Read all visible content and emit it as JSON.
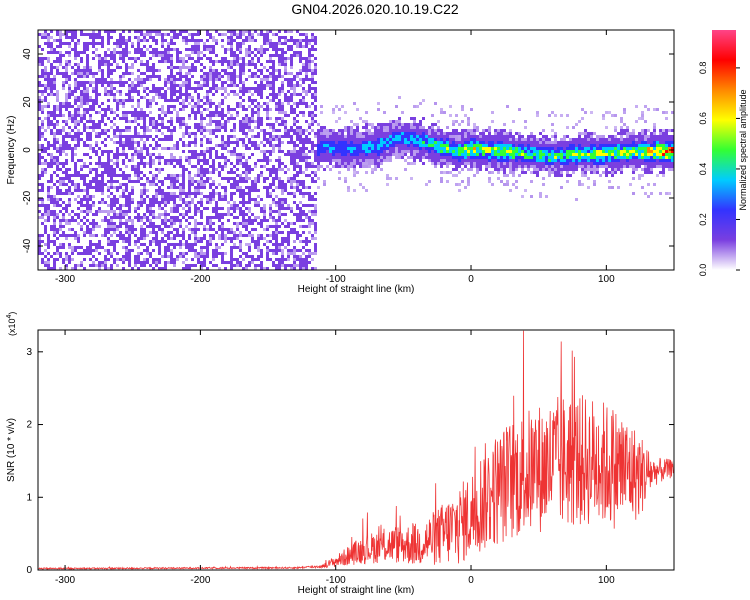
{
  "title": "GN04.2026.020.10.19.C22",
  "chart_data": [
    {
      "type": "heatmap",
      "name": "spectrogram",
      "title": "GN04.2026.020.10.19.C22",
      "xlabel": "Height of straight line (km)",
      "ylabel": "Frequency (Hz)",
      "xlim": [
        -320,
        150
      ],
      "ylim": [
        -50,
        50
      ],
      "xticks": [
        -300,
        -200,
        -100,
        0,
        100
      ],
      "yticks": [
        -40,
        -20,
        0,
        20,
        40
      ],
      "colorbar": {
        "label": "Normalized spectral amplitude",
        "range": [
          0,
          0.95
        ],
        "ticks": [
          0.0,
          0.2,
          0.4,
          0.6,
          0.8
        ],
        "tick_labels": [
          "0.0",
          "0.2",
          "0.4",
          "0.6",
          "0.8"
        ],
        "colors": [
          "#ffffff",
          "#7a3fe0",
          "#3333ff",
          "#00ccff",
          "#33ff33",
          "#ffff00",
          "#ff8800",
          "#ff0000",
          "#ff4488"
        ]
      },
      "noise_region": {
        "x": [
          -320,
          -115
        ],
        "level": 0.1
      },
      "signal_track": {
        "x": [
          -115,
          -90,
          -70,
          -55,
          -40,
          -25,
          -10,
          0,
          20,
          40,
          60,
          80,
          100,
          120,
          150
        ],
        "center_freq_hz": [
          2,
          1,
          2,
          6,
          5,
          2,
          0,
          1,
          0,
          -1,
          -2,
          -1,
          -1,
          0,
          0
        ],
        "peak_amplitude": [
          0.35,
          0.35,
          0.4,
          0.35,
          0.4,
          0.5,
          0.55,
          0.65,
          0.55,
          0.5,
          0.5,
          0.55,
          0.55,
          0.6,
          0.85
        ]
      }
    },
    {
      "type": "line",
      "name": "snr",
      "xlabel": "Height of straight line (km)",
      "ylabel": "SNR (10 * v/v)",
      "y_scale_label": "(x10",
      "y_scale_exp": "4",
      "xlim": [
        -320,
        150
      ],
      "ylim": [
        0,
        3.3
      ],
      "xticks": [
        -300,
        -200,
        -100,
        0,
        100
      ],
      "yticks": [
        0,
        1,
        2,
        3
      ],
      "color": "#ee3333",
      "envelope": {
        "x": [
          -320,
          -130,
          -110,
          -100,
          -80,
          -60,
          -40,
          -25,
          -10,
          0,
          10,
          30,
          50,
          70,
          90,
          110,
          125,
          135,
          150
        ],
        "mean": [
          0.02,
          0.03,
          0.05,
          0.12,
          0.28,
          0.35,
          0.35,
          0.45,
          0.6,
          0.75,
          1.0,
          1.25,
          1.4,
          1.5,
          1.5,
          1.4,
          1.3,
          1.35,
          1.4
        ],
        "spread": [
          0.01,
          0.01,
          0.02,
          0.08,
          0.2,
          0.25,
          0.3,
          0.4,
          0.55,
          0.6,
          0.75,
          0.85,
          0.9,
          0.95,
          0.9,
          0.85,
          0.6,
          0.2,
          0.12
        ]
      }
    }
  ]
}
